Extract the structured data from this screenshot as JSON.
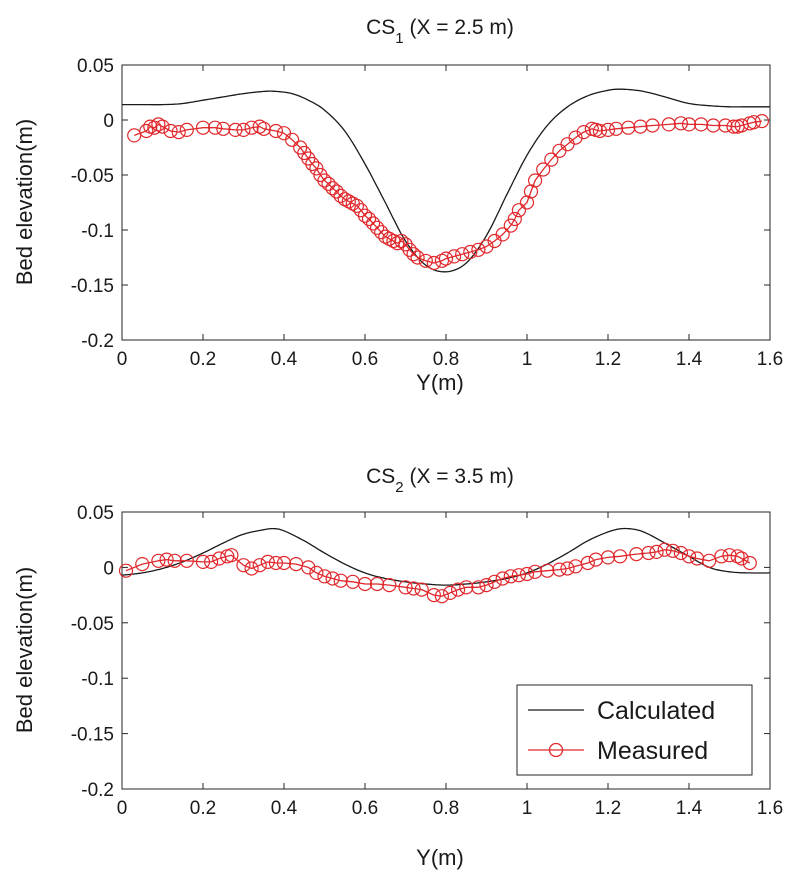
{
  "chart_data": [
    {
      "type": "line",
      "title_main": "CS",
      "title_sub": "1",
      "title_rest": " (X = 2.5 m)",
      "xlabel": "Y(m)",
      "ylabel": "Bed elevation(m)",
      "xlim": [
        0,
        1.6
      ],
      "ylim": [
        -0.2,
        0.05
      ],
      "xticks": [
        0,
        0.2,
        0.4,
        0.6,
        0.8,
        1,
        1.2,
        1.4,
        1.6
      ],
      "xtick_labels": [
        "0",
        "0.2",
        "0.4",
        "0.6",
        "0.8",
        "1",
        "1.2",
        "1.4",
        "1.6"
      ],
      "yticks": [
        0.05,
        0,
        -0.05,
        -0.1,
        -0.15,
        -0.2
      ],
      "ytick_labels": [
        "0.05",
        "0",
        "-0.05",
        "-0.1",
        "-0.15",
        "-0.2"
      ],
      "series": [
        {
          "name": "Calculated",
          "color": "#1a1a1a",
          "style": "line",
          "x": [
            0,
            0.05,
            0.1,
            0.15,
            0.2,
            0.25,
            0.3,
            0.35,
            0.38,
            0.42,
            0.46,
            0.5,
            0.55,
            0.6,
            0.65,
            0.7,
            0.75,
            0.8,
            0.85,
            0.9,
            0.95,
            1.0,
            1.05,
            1.1,
            1.15,
            1.2,
            1.23,
            1.27,
            1.3,
            1.35,
            1.4,
            1.45,
            1.5,
            1.55,
            1.6
          ],
          "y": [
            0.014,
            0.014,
            0.014,
            0.015,
            0.018,
            0.021,
            0.024,
            0.026,
            0.026,
            0.024,
            0.018,
            0.009,
            -0.01,
            -0.04,
            -0.075,
            -0.11,
            -0.132,
            -0.138,
            -0.13,
            -0.105,
            -0.068,
            -0.032,
            -0.005,
            0.012,
            0.022,
            0.027,
            0.028,
            0.027,
            0.025,
            0.02,
            0.015,
            0.013,
            0.012,
            0.012,
            0.012
          ]
        },
        {
          "name": "Measured",
          "color": "#e0282c",
          "style": "line-circle",
          "x": [
            0.03,
            0.06,
            0.07,
            0.08,
            0.09,
            0.1,
            0.12,
            0.14,
            0.16,
            0.2,
            0.23,
            0.25,
            0.28,
            0.3,
            0.32,
            0.34,
            0.35,
            0.38,
            0.4,
            0.42,
            0.44,
            0.45,
            0.46,
            0.47,
            0.48,
            0.49,
            0.5,
            0.51,
            0.52,
            0.53,
            0.54,
            0.55,
            0.56,
            0.57,
            0.58,
            0.59,
            0.6,
            0.61,
            0.62,
            0.63,
            0.64,
            0.65,
            0.66,
            0.67,
            0.68,
            0.69,
            0.7,
            0.71,
            0.72,
            0.73,
            0.75,
            0.77,
            0.79,
            0.8,
            0.82,
            0.84,
            0.86,
            0.88,
            0.9,
            0.92,
            0.94,
            0.96,
            0.97,
            0.98,
            1.0,
            1.01,
            1.02,
            1.04,
            1.06,
            1.08,
            1.1,
            1.12,
            1.14,
            1.16,
            1.17,
            1.18,
            1.2,
            1.22,
            1.25,
            1.28,
            1.31,
            1.35,
            1.38,
            1.4,
            1.43,
            1.46,
            1.49,
            1.51,
            1.52,
            1.53,
            1.55,
            1.56,
            1.58
          ],
          "y": [
            -0.014,
            -0.01,
            -0.006,
            -0.007,
            -0.004,
            -0.006,
            -0.01,
            -0.011,
            -0.009,
            -0.007,
            -0.007,
            -0.008,
            -0.009,
            -0.009,
            -0.007,
            -0.006,
            -0.008,
            -0.01,
            -0.012,
            -0.018,
            -0.025,
            -0.03,
            -0.035,
            -0.04,
            -0.044,
            -0.05,
            -0.055,
            -0.058,
            -0.062,
            -0.065,
            -0.069,
            -0.072,
            -0.074,
            -0.076,
            -0.078,
            -0.082,
            -0.087,
            -0.09,
            -0.094,
            -0.098,
            -0.102,
            -0.106,
            -0.108,
            -0.11,
            -0.112,
            -0.11,
            -0.113,
            -0.118,
            -0.122,
            -0.125,
            -0.128,
            -0.13,
            -0.128,
            -0.126,
            -0.124,
            -0.122,
            -0.12,
            -0.118,
            -0.115,
            -0.11,
            -0.104,
            -0.096,
            -0.09,
            -0.082,
            -0.075,
            -0.065,
            -0.055,
            -0.045,
            -0.036,
            -0.028,
            -0.022,
            -0.016,
            -0.011,
            -0.008,
            -0.009,
            -0.01,
            -0.009,
            -0.008,
            -0.007,
            -0.006,
            -0.005,
            -0.004,
            -0.003,
            -0.004,
            -0.004,
            -0.005,
            -0.005,
            -0.006,
            -0.006,
            -0.005,
            -0.003,
            -0.002,
            -0.001
          ]
        }
      ]
    },
    {
      "type": "line",
      "title_main": "CS",
      "title_sub": "2",
      "title_rest": " (X = 3.5 m)",
      "xlabel": "Y(m)",
      "ylabel": "Bed elevation(m)",
      "xlim": [
        0,
        1.6
      ],
      "ylim": [
        -0.2,
        0.05
      ],
      "xticks": [
        0,
        0.2,
        0.4,
        0.6,
        0.8,
        1,
        1.2,
        1.4,
        1.6
      ],
      "xtick_labels": [
        "0",
        "0.2",
        "0.4",
        "0.6",
        "0.8",
        "1",
        "1.2",
        "1.4",
        "1.6"
      ],
      "yticks": [
        0.05,
        0,
        -0.05,
        -0.1,
        -0.15,
        -0.2
      ],
      "ytick_labels": [
        "0.05",
        "0",
        "-0.05",
        "-0.1",
        "-0.15",
        "-0.2"
      ],
      "legend": {
        "position": "bottom-right",
        "entries": [
          "Calculated",
          "Measured"
        ]
      },
      "series": [
        {
          "name": "Calculated",
          "color": "#1a1a1a",
          "style": "line",
          "x": [
            0,
            0.05,
            0.1,
            0.15,
            0.2,
            0.25,
            0.3,
            0.35,
            0.375,
            0.4,
            0.45,
            0.5,
            0.55,
            0.6,
            0.65,
            0.7,
            0.75,
            0.8,
            0.85,
            0.9,
            0.95,
            1.0,
            1.05,
            1.1,
            1.15,
            1.2,
            1.235,
            1.27,
            1.3,
            1.35,
            1.4,
            1.45,
            1.5,
            1.55,
            1.6
          ],
          "y": [
            -0.007,
            -0.005,
            -0.001,
            0.005,
            0.013,
            0.022,
            0.03,
            0.034,
            0.035,
            0.033,
            0.024,
            0.013,
            0.003,
            -0.005,
            -0.01,
            -0.013,
            -0.015,
            -0.016,
            -0.015,
            -0.013,
            -0.01,
            -0.005,
            0.003,
            0.013,
            0.024,
            0.032,
            0.035,
            0.034,
            0.03,
            0.02,
            0.01,
            0.0,
            -0.004,
            -0.005,
            -0.005
          ]
        },
        {
          "name": "Measured",
          "color": "#e0282c",
          "style": "line-circle",
          "x": [
            0.01,
            0.05,
            0.09,
            0.11,
            0.13,
            0.16,
            0.2,
            0.22,
            0.24,
            0.26,
            0.27,
            0.3,
            0.32,
            0.34,
            0.36,
            0.38,
            0.4,
            0.43,
            0.46,
            0.48,
            0.5,
            0.52,
            0.54,
            0.57,
            0.6,
            0.63,
            0.66,
            0.7,
            0.72,
            0.74,
            0.77,
            0.79,
            0.81,
            0.83,
            0.85,
            0.88,
            0.9,
            0.92,
            0.94,
            0.96,
            0.98,
            1.0,
            1.02,
            1.05,
            1.08,
            1.1,
            1.12,
            1.15,
            1.17,
            1.2,
            1.23,
            1.27,
            1.3,
            1.32,
            1.34,
            1.36,
            1.38,
            1.4,
            1.42,
            1.45,
            1.48,
            1.5,
            1.52,
            1.53,
            1.55
          ],
          "y": [
            -0.003,
            0.003,
            0.006,
            0.007,
            0.006,
            0.006,
            0.005,
            0.005,
            0.008,
            0.01,
            0.011,
            0.002,
            -0.001,
            0.002,
            0.005,
            0.004,
            0.004,
            0.003,
            0.0,
            -0.005,
            -0.008,
            -0.01,
            -0.012,
            -0.013,
            -0.015,
            -0.015,
            -0.016,
            -0.018,
            -0.019,
            -0.02,
            -0.025,
            -0.026,
            -0.023,
            -0.02,
            -0.018,
            -0.018,
            -0.016,
            -0.013,
            -0.01,
            -0.008,
            -0.007,
            -0.006,
            -0.004,
            -0.003,
            -0.002,
            -0.001,
            0.001,
            0.004,
            0.007,
            0.009,
            0.01,
            0.012,
            0.013,
            0.014,
            0.016,
            0.015,
            0.013,
            0.01,
            0.008,
            0.006,
            0.01,
            0.011,
            0.01,
            0.008,
            0.004
          ]
        }
      ]
    }
  ]
}
